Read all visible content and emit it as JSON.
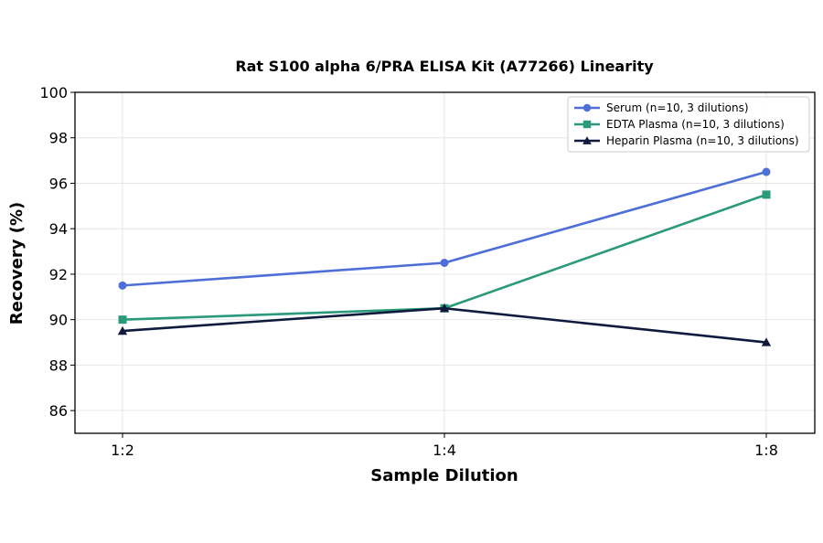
{
  "chart_data": {
    "type": "line",
    "title": "Rat S100 alpha 6/PRA ELISA Kit (A77266) Linearity",
    "xlabel": "Sample Dilution",
    "ylabel": "Recovery (%)",
    "categories": [
      "1:2",
      "1:4",
      "1:8"
    ],
    "ylim": [
      85,
      100
    ],
    "yticks": [
      86,
      88,
      90,
      92,
      94,
      96,
      98,
      100
    ],
    "grid": true,
    "legend_position": "top-right",
    "series": [
      {
        "name": "Serum (n=10, 3 dilutions)",
        "values": [
          91.5,
          92.5,
          96.5
        ],
        "color": "#4e6fd8",
        "marker": "circle"
      },
      {
        "name": "EDTA Plasma (n=10, 3 dilutions)",
        "values": [
          90.0,
          90.5,
          95.5
        ],
        "color": "#2a9a7a",
        "marker": "square"
      },
      {
        "name": "Heparin Plasma (n=10, 3 dilutions)",
        "values": [
          89.5,
          90.5,
          89.0
        ],
        "color": "#0f1a3d",
        "marker": "triangle"
      }
    ]
  }
}
